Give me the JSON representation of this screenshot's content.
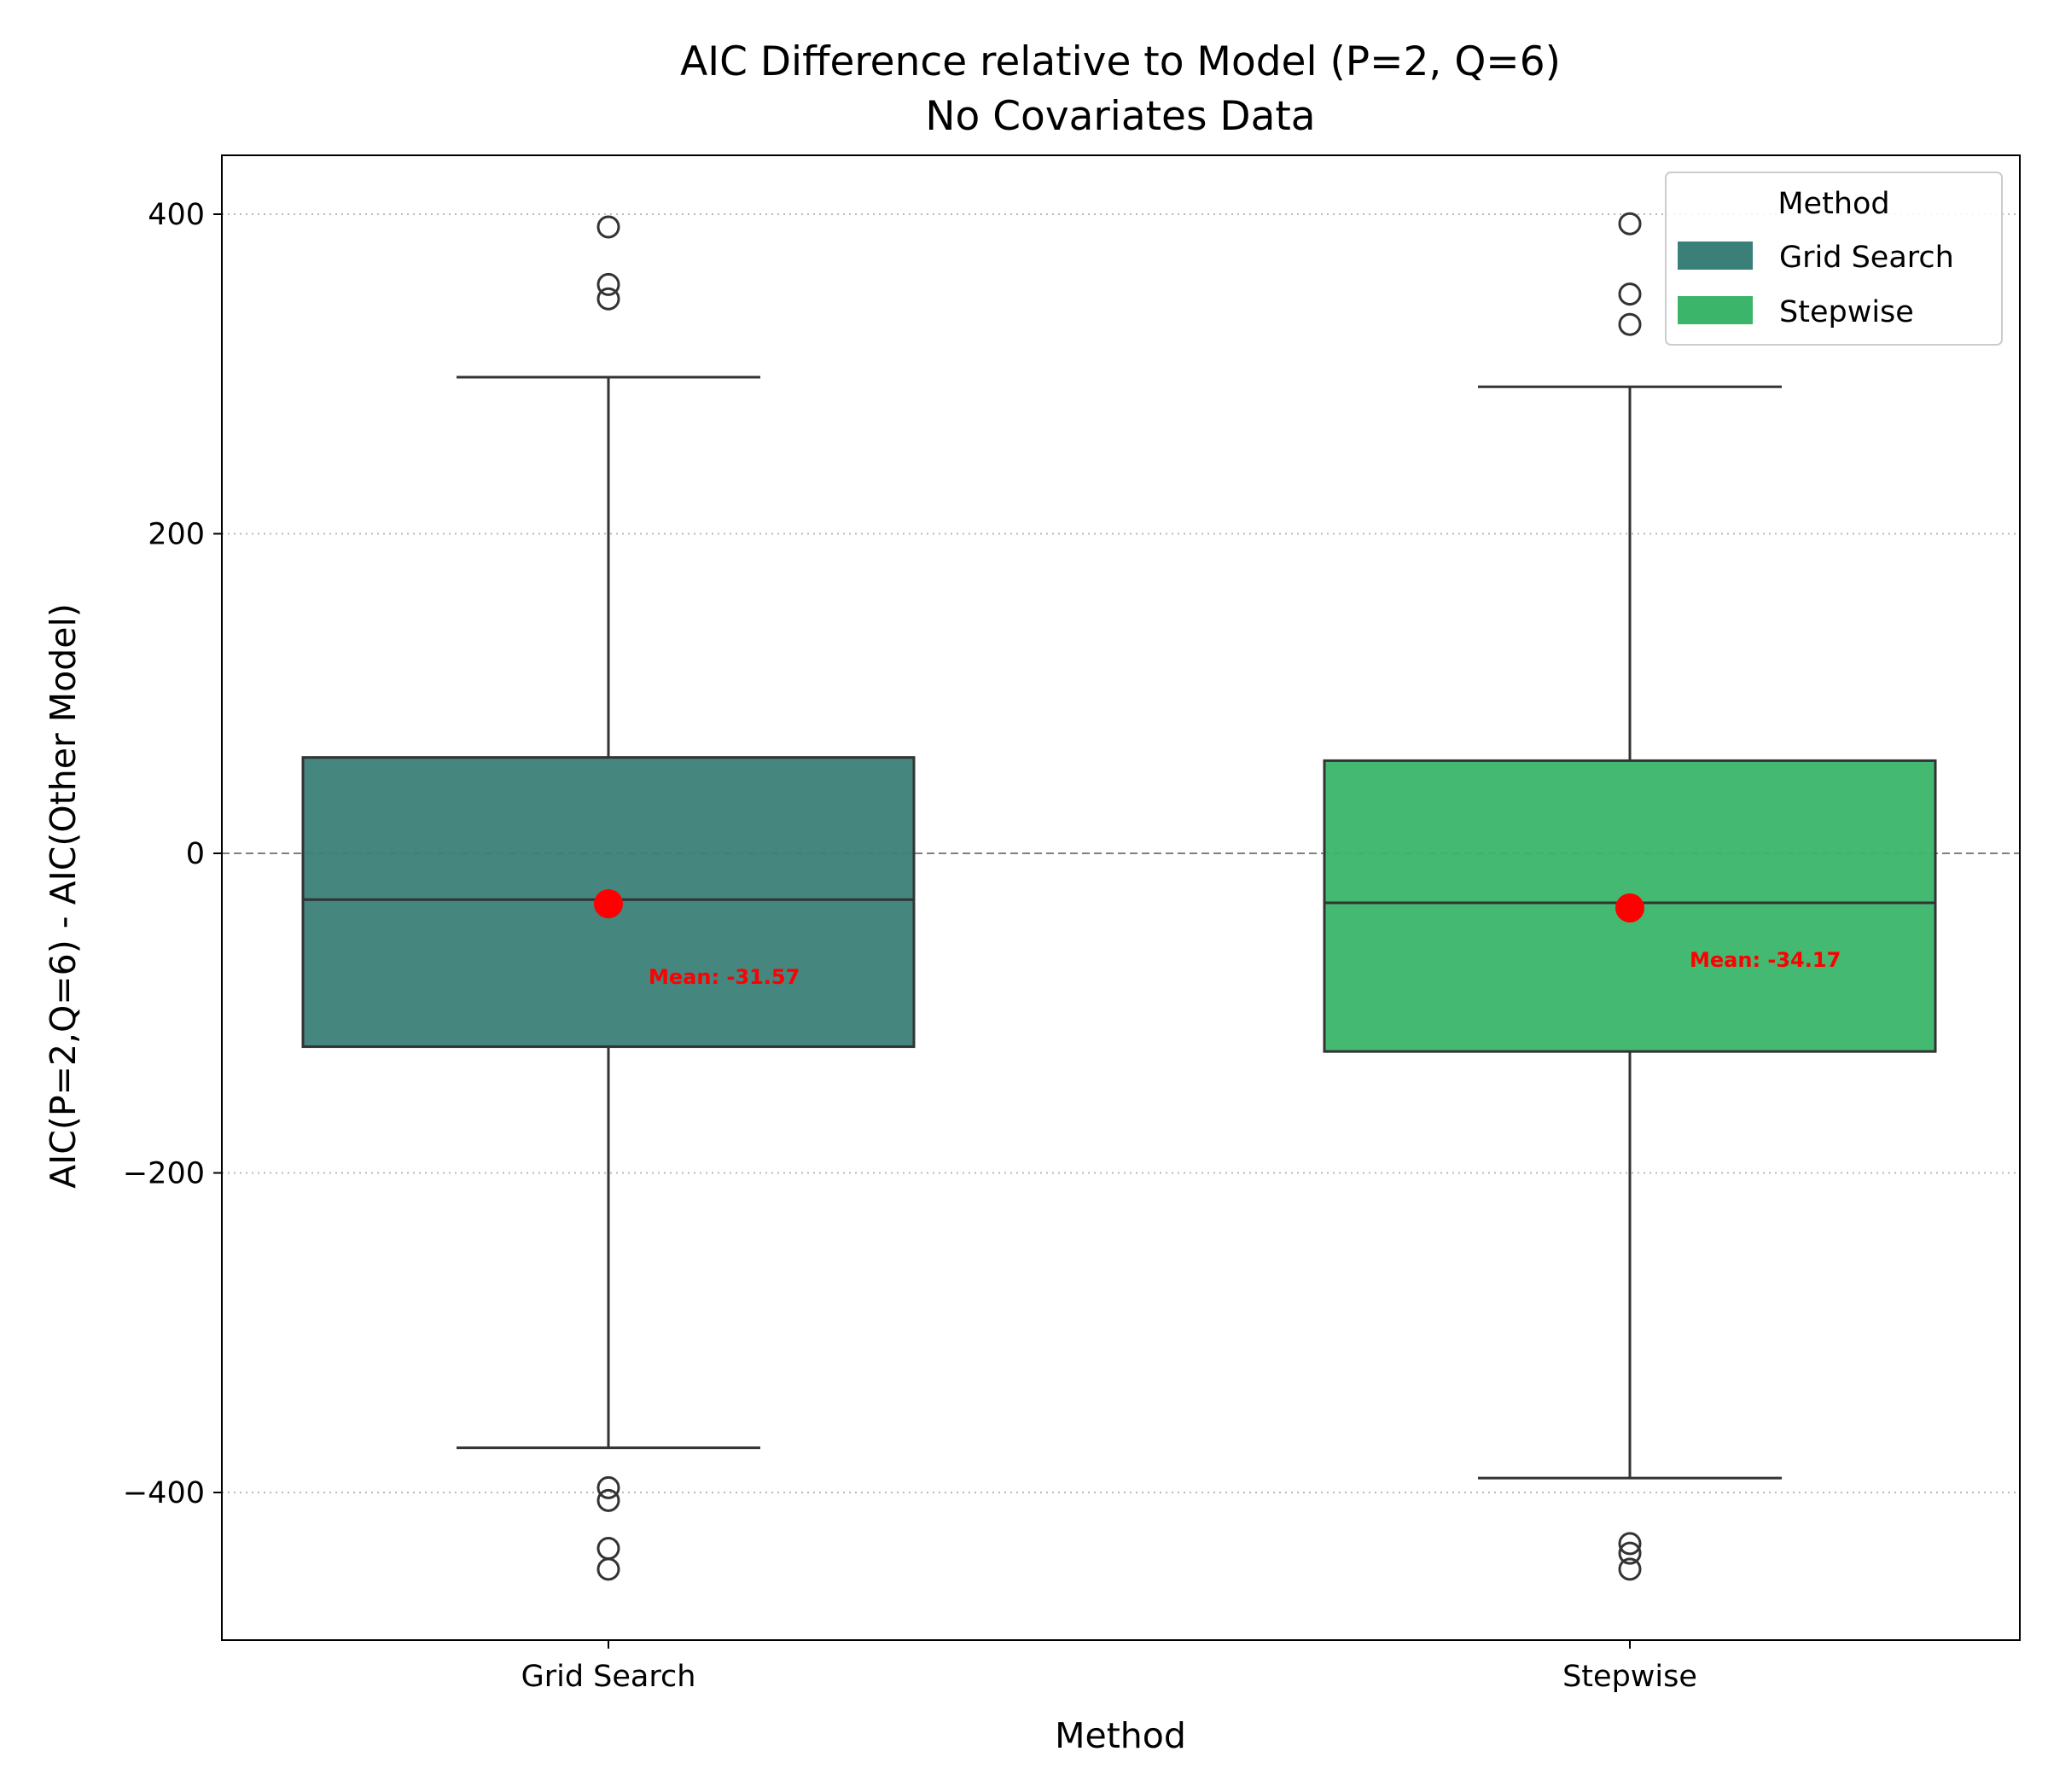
{
  "chart_data": {
    "type": "box",
    "title": "AIC Difference relative to Model (P=2, Q=6)",
    "subtitle": "No Covariates Data",
    "xlabel": "Method",
    "ylabel": "AIC(P=2,Q=6) - AIC(Other Model)",
    "ylim": [
      -490,
      437
    ],
    "yticks": [
      -400,
      -200,
      0,
      200,
      400
    ],
    "ytick_labels": [
      "−400",
      "−200",
      "0",
      "200",
      "400"
    ],
    "grid": "horizontal dotted",
    "reference_line": 0,
    "categories": [
      "Grid Search",
      "Stepwise"
    ],
    "series": [
      {
        "name": "Grid Search",
        "color": "#3b8078",
        "whisker_low": -372,
        "q1": -121,
        "median": -29,
        "q3": 60,
        "whisker_high": 298,
        "mean": -31.57,
        "mean_label": "Mean: -31.57",
        "outliers": [
          392,
          356,
          347,
          -397,
          -405,
          -435,
          -448
        ]
      },
      {
        "name": "Stepwise",
        "color": "#3ab56a",
        "whisker_low": -391,
        "q1": -124,
        "median": -31,
        "q3": 58,
        "whisker_high": 292,
        "mean": -34.17,
        "mean_label": "Mean: -34.17",
        "outliers": [
          394,
          350,
          331,
          -432,
          -438,
          -448
        ]
      }
    ],
    "legend": {
      "title": "Method",
      "placement": "top-right",
      "entries": [
        {
          "label": "Grid Search",
          "color": "#3b8078"
        },
        {
          "label": "Stepwise",
          "color": "#3ab56a"
        }
      ]
    }
  }
}
